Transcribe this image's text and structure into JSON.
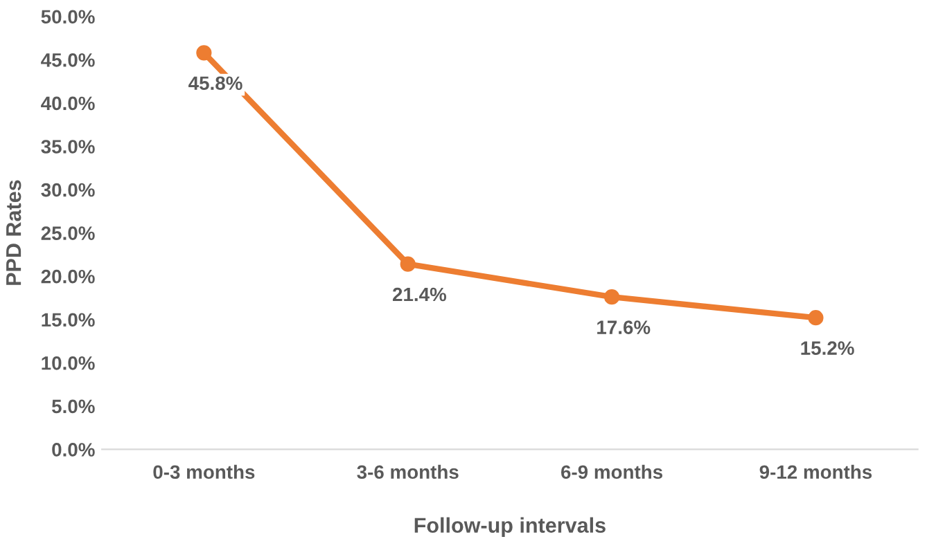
{
  "chart_data": {
    "type": "line",
    "xlabel": "Follow-up intervals",
    "ylabel": "PPD Rates",
    "categories": [
      "0-3 months",
      "3-6 months",
      "6-9 months",
      "9-12 months"
    ],
    "series": [
      {
        "color": "#ed7d31",
        "values": [
          45.8,
          21.4,
          17.6,
          15.2
        ],
        "value_labels": [
          "45.8%",
          "21.4%",
          "17.6%",
          "15.2%"
        ]
      }
    ],
    "ylim": [
      0,
      50
    ],
    "yticks": [
      {
        "value": 0,
        "label": "0.0%"
      },
      {
        "value": 5,
        "label": "5.0%"
      },
      {
        "value": 10,
        "label": "10.0%"
      },
      {
        "value": 15,
        "label": "15.0%"
      },
      {
        "value": 20,
        "label": "20.0%"
      },
      {
        "value": 25,
        "label": "25.0%"
      },
      {
        "value": 30,
        "label": "30.0%"
      },
      {
        "value": 35,
        "label": "35.0%"
      },
      {
        "value": 40,
        "label": "40.0%"
      },
      {
        "value": 45,
        "label": "45.0%"
      },
      {
        "value": 50,
        "label": "50.0%"
      }
    ],
    "grid": false,
    "legend": false,
    "marker": "circle",
    "line_style": "solid"
  }
}
